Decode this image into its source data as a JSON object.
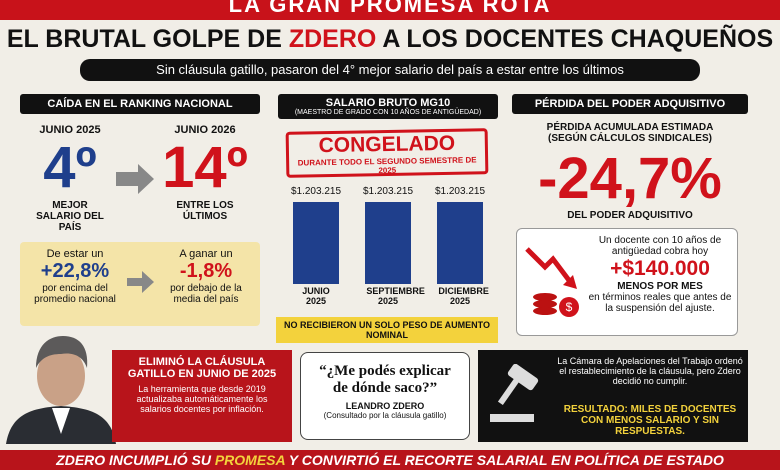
{
  "banner": "LA GRAN PROMESA ROTA",
  "title": {
    "before": "EL BRUTAL GOLPE DE",
    "highlight": "ZDERO",
    "after": "A LOS DOCENTES CHAQUEÑOS"
  },
  "subtitle": "Sin cláusula gatillo, pasaron del 4° mejor salario del país a estar entre los últimos",
  "ranking": {
    "header": "CAÍDA EN EL RANKING NACIONAL",
    "before": {
      "date": "JUNIO 2025",
      "rank": "4º",
      "caption": "MEJOR SALARIO DEL PAÍS"
    },
    "after": {
      "date": "JUNIO 2026",
      "rank": "14º",
      "caption": "ENTRE LOS ÚLTIMOS"
    },
    "compare_before": {
      "intro": "De estar un",
      "value": "+22,8%",
      "caption": "por encima del promedio nacional"
    },
    "compare_after": {
      "intro": "A ganar un",
      "value": "-1,8%",
      "caption": "por debajo de la media del país"
    }
  },
  "salary": {
    "header": "SALARIO BRUTO MG10",
    "subheader": "(MAESTRO DE GRADO CON 10 AÑOS DE ANTIGÜEDAD)",
    "stamp": "CONGELADO",
    "stamp_note": "DURANTE TODO EL SEGUNDO SEMESTRE DE 2025",
    "chart_data": {
      "type": "bar",
      "categories": [
        "JUNIO 2025",
        "SEPTIEMBRE 2025",
        "DICIEMBRE 2025"
      ],
      "values": [
        1203215,
        1203215,
        1203215
      ],
      "value_labels": [
        "$1.203.215",
        "$1.203.215",
        "$1.203.215"
      ],
      "color": "#1f3f8c"
    },
    "footer": "NO RECIBIERON UN SOLO PESO DE AUMENTO NOMINAL"
  },
  "loss": {
    "header": "PÉRDIDA DEL PODER ADQUISITIVO",
    "label": "PÉRDIDA ACUMULADA ESTIMADA",
    "source": "(SEGÚN CÁLCULOS SINDICALES)",
    "value": "-24,7%",
    "caption": "DEL PODER ADQUISITIVO",
    "box": {
      "intro": "Un docente con 10 años de antigüedad cobra hoy",
      "amount": "+$140.000",
      "period": "MENOS POR MES",
      "note": "en términos reales que antes de la suspensión del ajuste."
    }
  },
  "clause": {
    "title": "ELIMINÓ LA CLÁUSULA GATILLO EN JUNIO DE 2025",
    "text": "La herramienta que desde 2019 actualizaba automáticamente los salarios docentes por inflación."
  },
  "quote": {
    "text": "“¿Me podés explicar de dónde saco?”",
    "author": "LEANDRO ZDERO",
    "context": "(Consultado por la cláusula gatillo)"
  },
  "court": {
    "text": "La Cámara de Apelaciones del Trabajo ordenó el restablecimiento de la cláusula, pero Zdero decidió no cumplir.",
    "result": "RESULTADO: MILES DE DOCENTES CON MENOS SALARIO Y SIN RESPUESTAS."
  },
  "footer": {
    "before": "ZDERO INCUMPLIÓ SU",
    "highlight": "PROMESA",
    "after": "Y CONVIRTIÓ EL RECORTE SALARIAL EN POLÍTICA DE ESTADO"
  }
}
